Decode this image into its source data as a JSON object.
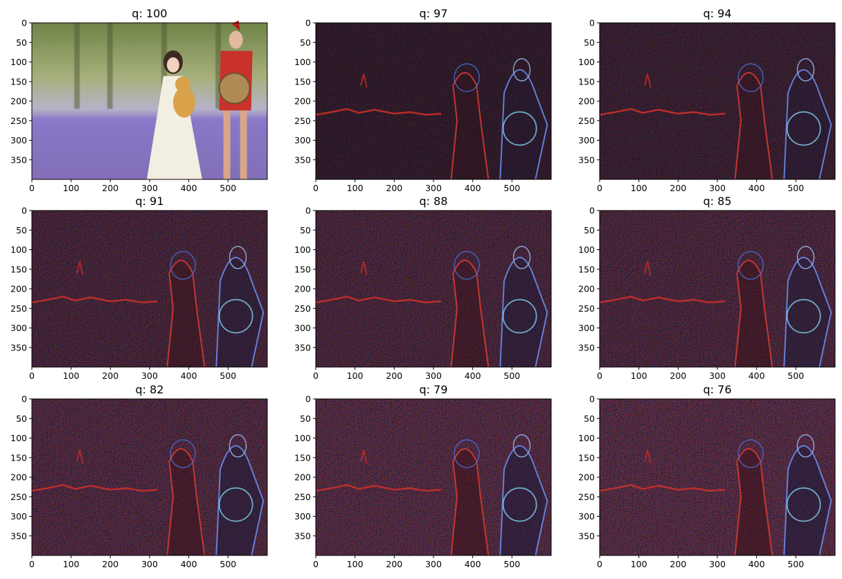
{
  "chart_data": {
    "type": "image-grid",
    "layout": {
      "rows": 3,
      "cols": 3
    },
    "xlim": [
      0,
      600
    ],
    "ylim": [
      400,
      0
    ],
    "x_ticks": [
      0,
      100,
      200,
      300,
      400,
      500
    ],
    "y_ticks": [
      0,
      50,
      100,
      150,
      200,
      250,
      300,
      350
    ],
    "panels": [
      {
        "title": "q: 100",
        "kind": "photo"
      },
      {
        "title": "q: 97",
        "kind": "ela",
        "intensity": 0.45
      },
      {
        "title": "q: 94",
        "kind": "ela",
        "intensity": 0.55
      },
      {
        "title": "q: 91",
        "kind": "ela",
        "intensity": 0.7
      },
      {
        "title": "q: 88",
        "kind": "ela",
        "intensity": 0.72
      },
      {
        "title": "q: 85",
        "kind": "ela",
        "intensity": 0.75
      },
      {
        "title": "q: 82",
        "kind": "ela",
        "intensity": 0.8
      },
      {
        "title": "q: 79",
        "kind": "ela",
        "intensity": 0.85
      },
      {
        "title": "q: 76",
        "kind": "ela",
        "intensity": 0.88
      }
    ]
  }
}
